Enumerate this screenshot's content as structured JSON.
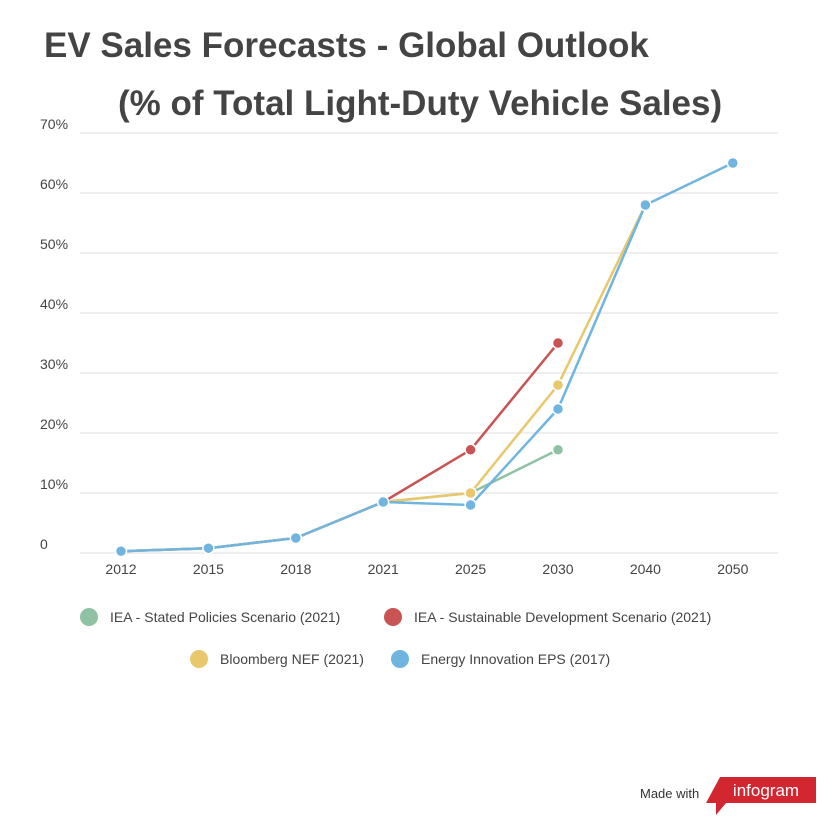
{
  "chart_data": {
    "type": "line",
    "title": "EV Sales Forecasts - Global Outlook",
    "subtitle": "(% of Total Light-Duty Vehicle Sales)",
    "categories": [
      "2012",
      "2015",
      "2018",
      "2021",
      "2025",
      "2030",
      "2040",
      "2050"
    ],
    "ylim": [
      0,
      70
    ],
    "yticks": [
      0,
      10,
      20,
      30,
      40,
      50,
      60,
      70
    ],
    "ytick_labels": [
      "0",
      "10%",
      "20%",
      "30%",
      "40%",
      "50%",
      "60%",
      "70%"
    ],
    "grid": true,
    "legend_placement": "bottom",
    "series": [
      {
        "name": "IEA - Stated Policies Scenario (2021)",
        "color": "#8fc1a3",
        "values": [
          0.3,
          0.8,
          2.5,
          8.5,
          10,
          17.2,
          null,
          null
        ]
      },
      {
        "name": "IEA - Sustainable Development Scenario (2021)",
        "color": "#c95454",
        "values": [
          0.3,
          0.8,
          2.5,
          8.5,
          17.2,
          35,
          null,
          null
        ]
      },
      {
        "name": "Bloomberg NEF (2021)",
        "color": "#e8c86a",
        "values": [
          0.3,
          0.8,
          2.5,
          8.5,
          10,
          28,
          58,
          null
        ]
      },
      {
        "name": "Energy Innovation EPS (2017)",
        "color": "#70b5e0",
        "values": [
          0.3,
          0.8,
          2.5,
          8.5,
          8,
          24,
          58,
          65
        ]
      }
    ]
  },
  "footer": {
    "made_with": "Made with",
    "brand": "infogram",
    "brand_color": "#d22630"
  }
}
